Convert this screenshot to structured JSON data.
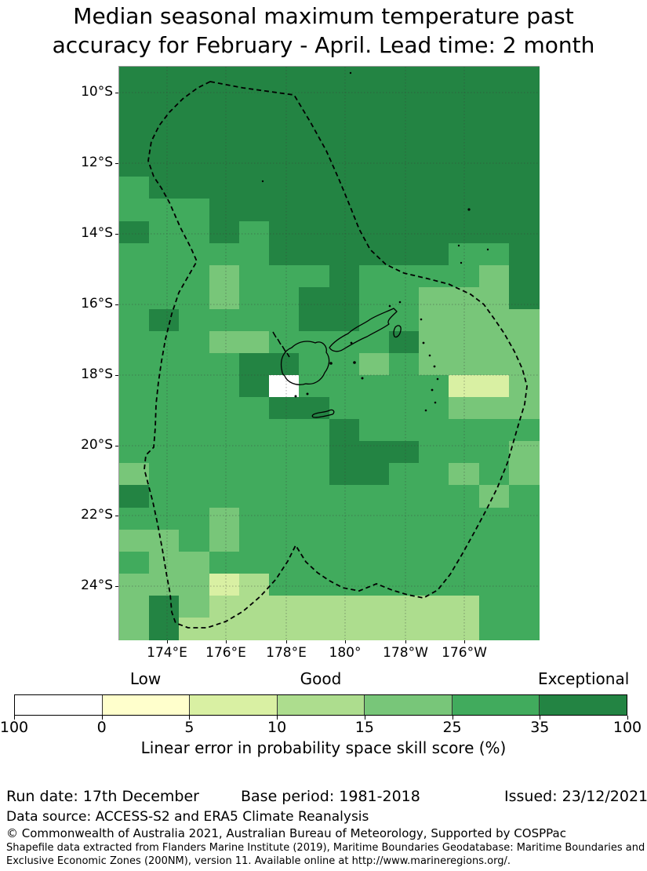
{
  "title": {
    "line1": "Median seasonal maximum temperature past",
    "line2": "accuracy for February - April. Lead time: 2 month"
  },
  "map": {
    "y_ticks": [
      "10°S",
      "12°S",
      "14°S",
      "16°S",
      "18°S",
      "20°S",
      "22°S",
      "24°S"
    ],
    "x_ticks": [
      "174°E",
      "176°E",
      "178°E",
      "180°",
      "178°W",
      "176°W"
    ],
    "palette": {
      "d": "#238443",
      "m": "#41ab5d",
      "l": "#78c679",
      "t": "#addd8e",
      "p": "#d9f0a3",
      "y": "#ffffcc",
      "w": "#ffffff"
    },
    "grid": [
      "dddddddddddddd",
      "dddddddddddddd",
      "dddddddddddddd",
      "dddddddddddddd",
      "dddddddddddddd",
      "mddddddddddddd",
      "mmmddddddddddd",
      "dmmdmddddddddd",
      "mmmmmddddddmmd",
      "mmmlmmmdmmmmld",
      "mmmlmmddmmllld",
      "mdmmmmddmmllll",
      "mmmllmmmmdllll",
      "mmmmddmmlmllll",
      "mmmmdwmmmmmppl",
      "mmmmmddmmmmlll",
      "mmmmmmmdmmmmmm",
      "mmmmmmmdddmmml",
      "lmmmmmmddmmlml",
      "dmmmmmmmmmmmlm",
      "mmmlmmmmmmmmmm",
      "llmlmmmmmmmmmm",
      "mllmmmmmmmmmmm",
      "lllptmmmmmmmmm",
      "ldltttttttttmm",
      "ldttttttttttmm"
    ],
    "boundary_name": "EEZ dashed boundary",
    "coastline_name": "Fiji islands coastline"
  },
  "colorbar": {
    "region_labels": [
      "Low",
      "Good",
      "Exceptional"
    ],
    "tick_labels": [
      "100",
      "0",
      "5",
      "10",
      "15",
      "25",
      "35",
      "100"
    ],
    "segments": [
      "#ffffff",
      "#ffffcc",
      "#d9f0a3",
      "#addd8e",
      "#78c679",
      "#41ab5d",
      "#238443"
    ],
    "caption": "Linear error in probability space skill score (%)"
  },
  "footer": {
    "run_date": "Run date: 17th December",
    "base_period": "Base period: 1981-2018",
    "issued": "Issued: 23/12/2021",
    "data_source": "Data source: ACCESS-S2 and ERA5 Climate Reanalysis",
    "copyright": "© Commonwealth of Australia 2021, Australian Bureau of Meteorology, Supported by COSPPac",
    "shapefile_line1": "Shapefile data extracted from Flanders Marine Institute (2019), Maritime Boundaries Geodatabase: Maritime Boundaries and",
    "shapefile_line2": "Exclusive Economic Zones (200NM), version 11. Available online at http://www.marineregions.org/."
  },
  "chart_data": {
    "type": "heatmap",
    "title": "Median seasonal maximum temperature past accuracy for February - April. Lead time: 2 month",
    "xlabel_ticks": [
      "174°E",
      "176°E",
      "178°E",
      "180°",
      "178°W",
      "176°W"
    ],
    "ylabel_ticks": [
      "10°S",
      "12°S",
      "14°S",
      "16°S",
      "18°S",
      "20°S",
      "22°S",
      "24°S"
    ],
    "colorbar_bounds": [
      100,
      0,
      5,
      10,
      15,
      25,
      35,
      100
    ],
    "colorbar_colors": [
      "#ffffff",
      "#ffffcc",
      "#d9f0a3",
      "#addd8e",
      "#78c679",
      "#41ab5d",
      "#238443"
    ],
    "colorbar_region_labels": [
      "Low",
      "Good",
      "Exceptional"
    ],
    "colorbar_caption": "Linear error in probability space skill score (%)",
    "note": "Cell letter codes in map.grid map to skill bins: w=<0%, y=0-5, p=5-10, t=10-15, l=15-25, m=25-35, d=35-100"
  }
}
